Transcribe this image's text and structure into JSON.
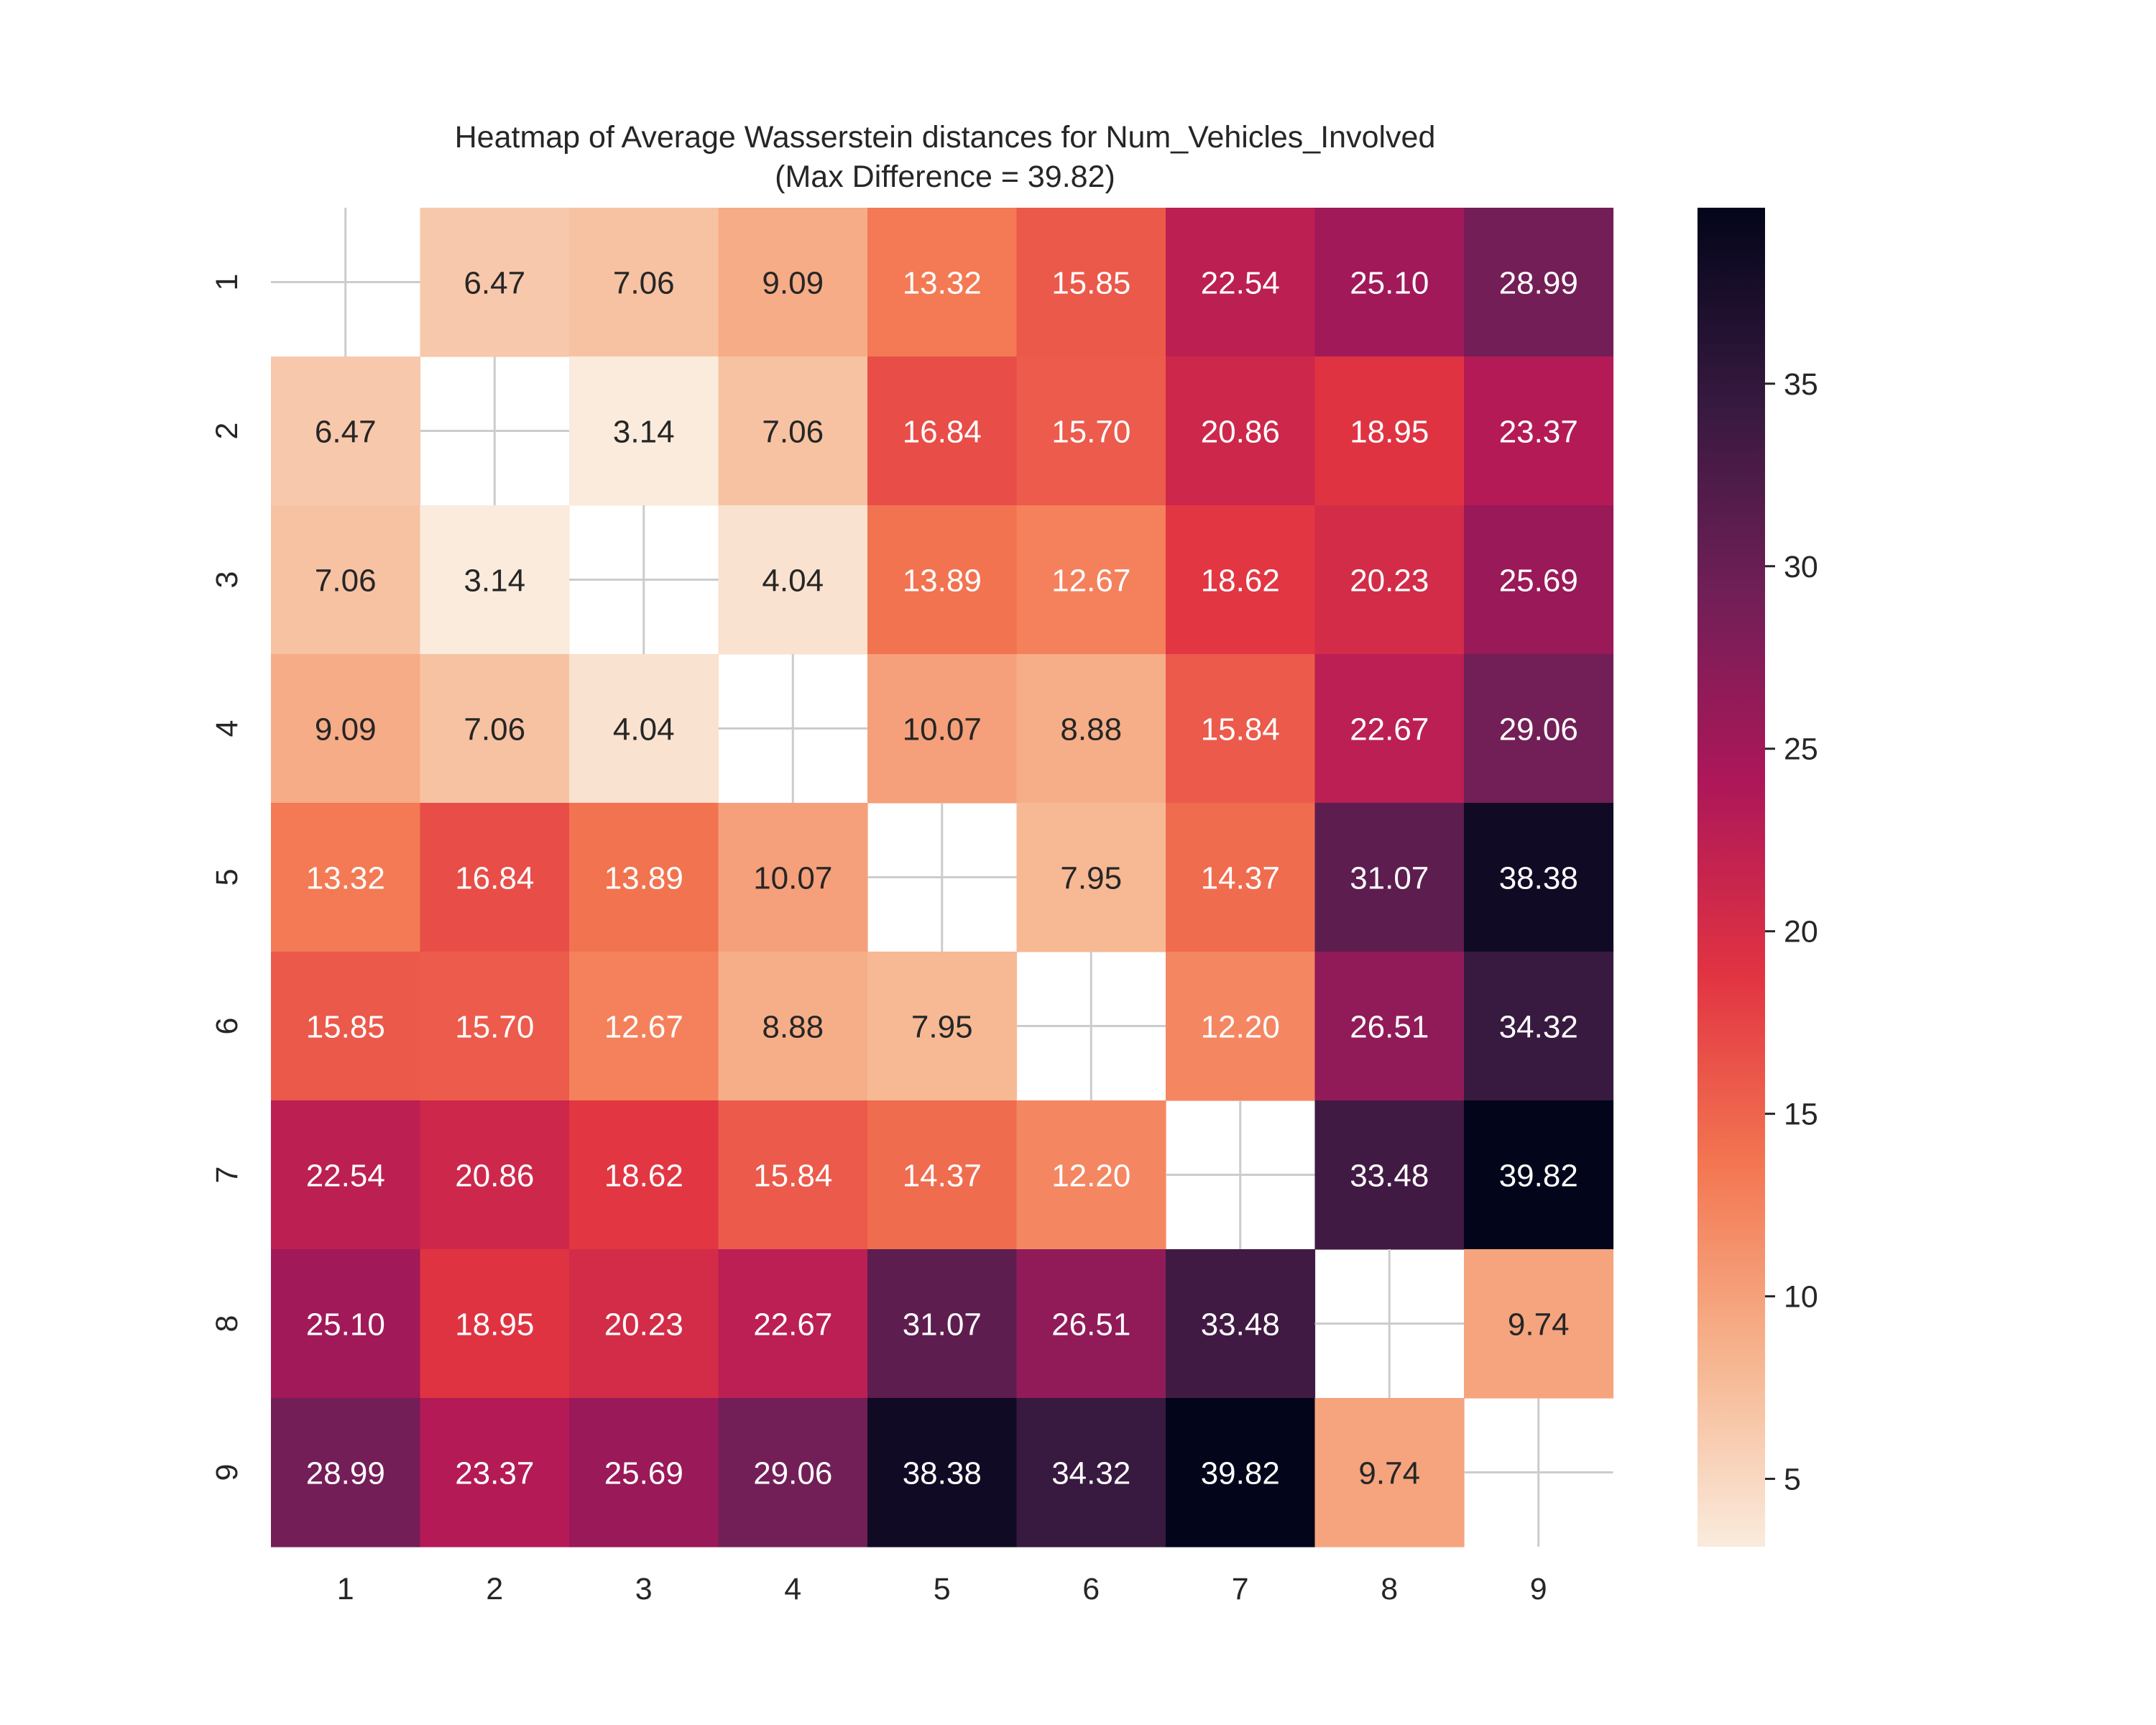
{
  "chart_data": {
    "type": "heatmap",
    "title": "Heatmap of Average Wasserstein distances for Num_Vehicles_Involved",
    "subtitle": "(Max Difference = 39.82)",
    "xlabel": "",
    "ylabel": "",
    "x_categories": [
      "1",
      "2",
      "3",
      "4",
      "5",
      "6",
      "7",
      "8",
      "9"
    ],
    "y_categories": [
      "1",
      "2",
      "3",
      "4",
      "5",
      "6",
      "7",
      "8",
      "9"
    ],
    "values": [
      [
        null,
        6.47,
        7.06,
        9.09,
        13.32,
        15.85,
        22.54,
        25.1,
        28.99
      ],
      [
        6.47,
        null,
        3.14,
        7.06,
        16.84,
        15.7,
        20.86,
        18.95,
        23.37
      ],
      [
        7.06,
        3.14,
        null,
        4.04,
        13.89,
        12.67,
        18.62,
        20.23,
        25.69
      ],
      [
        9.09,
        7.06,
        4.04,
        null,
        10.07,
        8.88,
        15.84,
        22.67,
        29.06
      ],
      [
        13.32,
        16.84,
        13.89,
        10.07,
        null,
        7.95,
        14.37,
        31.07,
        38.38
      ],
      [
        15.85,
        15.7,
        12.67,
        8.88,
        7.95,
        null,
        12.2,
        26.51,
        34.32
      ],
      [
        22.54,
        20.86,
        18.62,
        15.84,
        14.37,
        12.2,
        null,
        33.48,
        39.82
      ],
      [
        25.1,
        18.95,
        20.23,
        22.67,
        31.07,
        26.51,
        33.48,
        null,
        9.74
      ],
      [
        28.99,
        23.37,
        25.69,
        29.06,
        38.38,
        34.32,
        39.82,
        9.74,
        null
      ]
    ],
    "colorbar": {
      "min": 3.14,
      "max": 39.82,
      "ticks": [
        5,
        10,
        15,
        20,
        25,
        30,
        35
      ],
      "colormap": "rocket_r",
      "stops": [
        "#faebdd",
        "#f6b48e",
        "#f37651",
        "#e13342",
        "#ad1759",
        "#701f57",
        "#35193e",
        "#03051a"
      ]
    },
    "grid": true,
    "legend": "colorbar-right"
  }
}
